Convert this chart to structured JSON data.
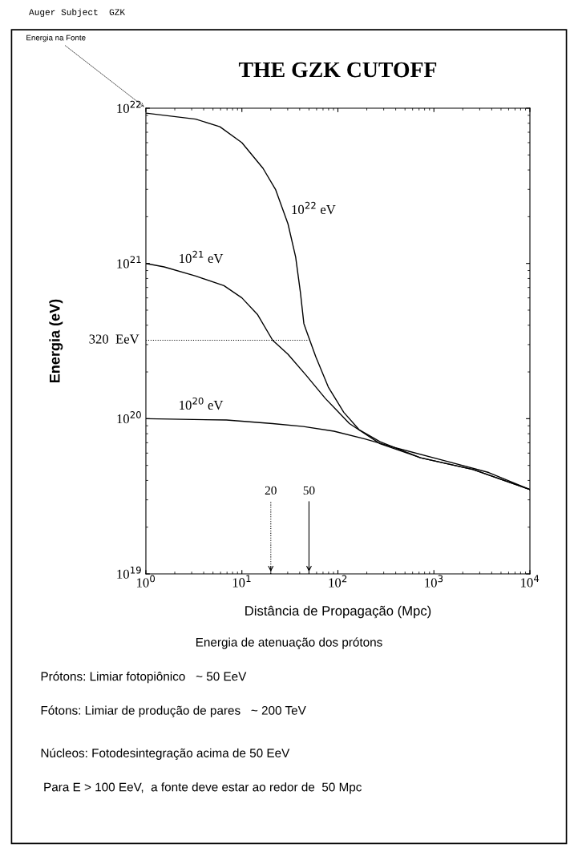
{
  "chart_data": {
    "type": "line",
    "title": "THE GZK CUTOFF",
    "xlabel": "Distância de Propagação (Mpc)",
    "ylabel": "Energia (eV)",
    "log": "xy",
    "grid": false,
    "legend": false,
    "line_style": "solid",
    "marker": "none",
    "xlim": [
      1,
      10000
    ],
    "xticks": [
      {
        "value": 1,
        "label": "10$^{0}$"
      },
      {
        "value": 10,
        "label": "10$^{1}$"
      },
      {
        "value": 100,
        "label": "10$^{2}$"
      },
      {
        "value": 1000,
        "label": "10$^{3}$"
      },
      {
        "value": 10000,
        "label": "10$^{4}$"
      }
    ],
    "ylim": [
      1e+19,
      1e+22
    ],
    "yticks": [
      {
        "value": 1e+19,
        "label": "10$^{19}$"
      },
      {
        "value": 1e+20,
        "label": "10$^{20}$"
      },
      {
        "value": 1e+21,
        "label": "10$^{21}$"
      },
      {
        "value": 1e+22,
        "label": "10$^{22}$"
      }
    ],
    "series": [
      {
        "color": "#000000",
        "x": [
          1,
          3.3,
          5.9,
          10,
          16.6,
          22.4,
          30.2,
          36.3,
          40.7,
          44.2,
          46.8,
          58.9,
          79.4,
          115,
          166,
          275,
          724,
          2570,
          10000
        ],
        "values": [
          9.3e+21,
          8.5e+21,
          7.6e+21,
          6e+21,
          4.1e+21,
          3e+21,
          1.8e+21,
          1.1e+21,
          6.5e+20,
          4.1e+20,
          3.7e+20,
          2.5e+20,
          1.6e+20,
          1.1e+20,
          8.5e+19,
          7.1e+19,
          5.6e+19,
          4.7e+19,
          3.5e+19
        ]
      },
      {
        "color": "#000000",
        "x": [
          1,
          1.55,
          3.3,
          6.5,
          10,
          14.5,
          20.9,
          30.2,
          46.8,
          74,
          132,
          275,
          724,
          2570,
          10000
        ],
        "values": [
          1e+21,
          9.5e+20,
          8.3e+20,
          7.2e+20,
          6e+20,
          4.7e+20,
          3.2e+20,
          2.6e+20,
          1.9e+20,
          1.35e+20,
          9.3e+19,
          6.9e+19,
          5.6e+19,
          4.7e+19,
          3.5e+19
        ]
      },
      {
        "color": "#000000",
        "x": [
          1,
          6.9,
          20.9,
          43.7,
          91,
          191,
          398,
          1230,
          3720,
          10000
        ],
        "values": [
          1e+20,
          9.8e+19,
          9.3e+19,
          8.9e+19,
          8.3e+19,
          7.4e+19,
          6.5e+19,
          5.4e+19,
          4.5e+19,
          3.5e+19
        ]
      }
    ],
    "ref_lines": [
      {
        "axis": "y",
        "value": 3.2e+20,
        "label": "320  EeV",
        "line_style": "dotted",
        "color": "#000000"
      },
      {
        "axis": "x",
        "value": 20,
        "label": "20",
        "line_style": "dotted",
        "color": "#000000"
      },
      {
        "axis": "x",
        "value": 50,
        "label": "50",
        "line_style": "solid",
        "color": "#000000"
      }
    ],
    "annotations": [
      "Auger Subject  GZK",
      "Energia na Fonte",
      "10$^{22}$ eV",
      "10$^{21}$ eV",
      "10$^{20}$ eV",
      "Energia de atenuação dos prótons",
      "Prótons: Limiar fotopiônico   ~ 50 EeV",
      "Fótons: Limiar de produção de pares   ~ 200 TeV",
      "Núcleos: Fotodesintegração acima de 50 EeV",
      "Para E > 100 EeV,  a fonte deve estar ao redor de  50 Mpc"
    ]
  }
}
